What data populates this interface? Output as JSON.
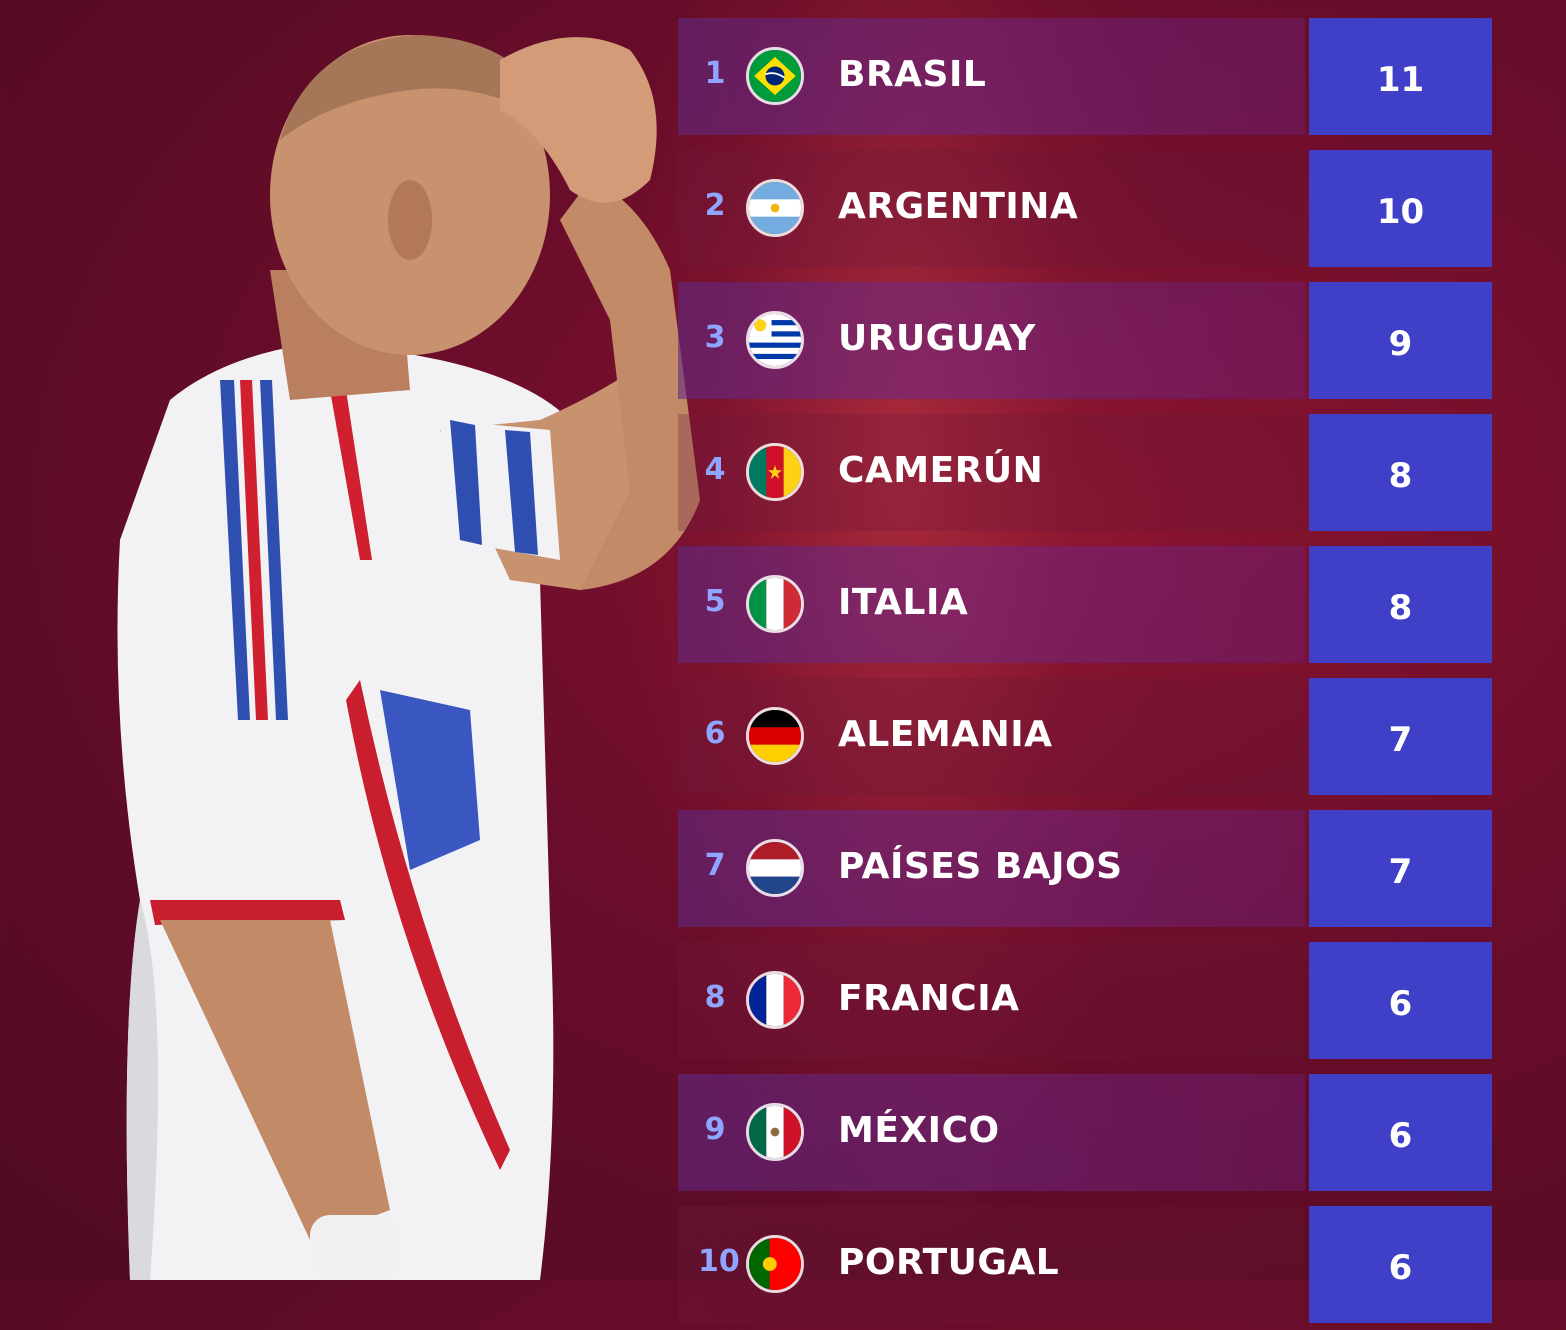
{
  "rows": [
    {
      "rank": "1",
      "name": "BRASIL",
      "value": "11",
      "flag": "brazil-flag-icon"
    },
    {
      "rank": "2",
      "name": "ARGENTINA",
      "value": "10",
      "flag": "argentina-flag-icon"
    },
    {
      "rank": "3",
      "name": "URUGUAY",
      "value": "9",
      "flag": "uruguay-flag-icon"
    },
    {
      "rank": "4",
      "name": "CAMERÚN",
      "value": "8",
      "flag": "cameroon-flag-icon"
    },
    {
      "rank": "5",
      "name": "ITALIA",
      "value": "8",
      "flag": "italy-flag-icon"
    },
    {
      "rank": "6",
      "name": "ALEMANIA",
      "value": "7",
      "flag": "germany-flag-icon"
    },
    {
      "rank": "7",
      "name": "PAÍSES BAJOS",
      "value": "7",
      "flag": "netherlands-flag-icon"
    },
    {
      "rank": "8",
      "name": "FRANCIA",
      "value": "6",
      "flag": "france-flag-icon"
    },
    {
      "rank": "9",
      "name": "MÉXICO",
      "value": "6",
      "flag": "mexico-flag-icon"
    },
    {
      "rank": "10",
      "name": "PORTUGAL",
      "value": "6",
      "flag": "portugal-flag-icon"
    }
  ],
  "colors": {
    "background": "#6a0d2a",
    "value_box": "#3f3fc8",
    "rank_text": "#8fa5ff"
  }
}
